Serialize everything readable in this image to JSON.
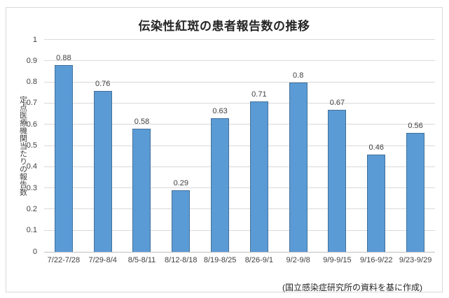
{
  "chart_data": {
    "type": "bar",
    "title": "伝染性紅斑の患者報告数の推移",
    "ylabel": "定点医療機関当たりの報告数",
    "xlabel": "",
    "source_note": "(国立感染症研究所の資料を基に作成)",
    "categories": [
      "7/22-7/28",
      "7/29-8/4",
      "8/5-8/11",
      "8/12-8/18",
      "8/19-8/25",
      "8/26-9/1",
      "9/2-9/8",
      "9/9-9/15",
      "9/16-9/22",
      "9/23-9/29"
    ],
    "values": [
      0.88,
      0.76,
      0.58,
      0.29,
      0.63,
      0.71,
      0.8,
      0.67,
      0.46,
      0.56
    ],
    "value_labels": [
      "0.88",
      "0.76",
      "0.58",
      "0.29",
      "0.63",
      "0.71",
      "0.8",
      "0.67",
      "0.46",
      "0.56"
    ],
    "ylim": [
      0,
      1
    ],
    "y_ticks": [
      "1",
      "0.9",
      "0.8",
      "0.7",
      "0.6",
      "0.5",
      "0.4",
      "0.3",
      "0.2",
      "0.1",
      "0"
    ],
    "grid": true,
    "legend": "none",
    "colors": {
      "bar_fill": "#5B9BD5",
      "bar_border": "#41719C",
      "gridline": "#D9D9D9",
      "axis_line": "#BFBFBF",
      "text": "#404040",
      "frame_border": "#D9D9D9",
      "background": "#FFFFFF"
    }
  }
}
